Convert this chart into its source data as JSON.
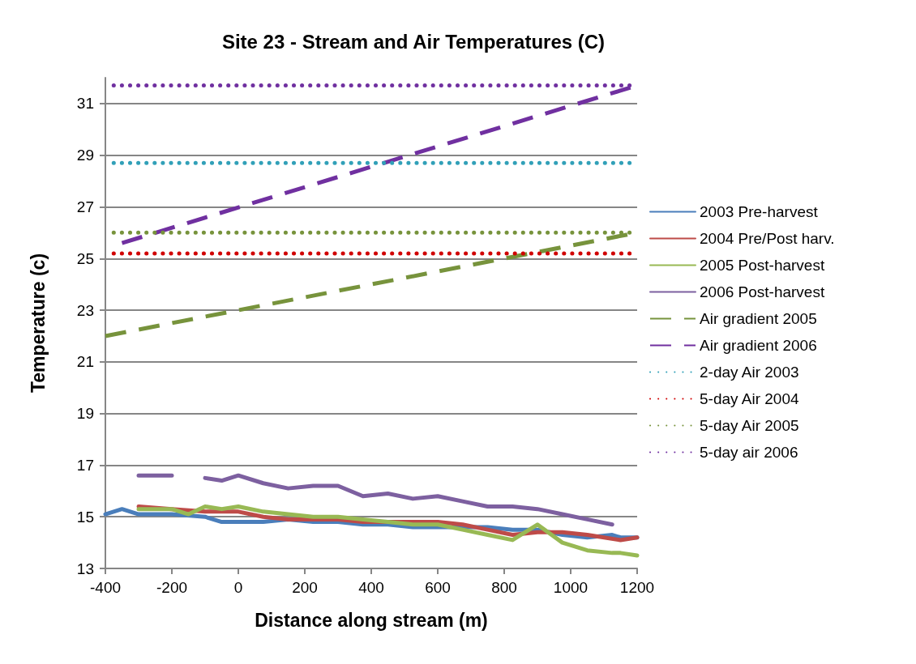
{
  "chart_data": {
    "type": "line",
    "title": "Site 23 - Stream and Air Temperatures (C)",
    "xlabel": "Distance along stream (m)",
    "ylabel": "Temperature (c)",
    "xlim": [
      -400,
      1200
    ],
    "xticks": [
      -400,
      -200,
      0,
      200,
      400,
      600,
      800,
      1000,
      1200
    ],
    "ylim": [
      13,
      32
    ],
    "yticks": [
      13,
      15,
      17,
      19,
      21,
      23,
      25,
      27,
      29,
      31
    ],
    "grid": "y",
    "legend": "right",
    "marker": "none",
    "series": [
      {
        "name": "2003 Pre-harvest",
        "color": "#4a7ebb",
        "line_style": "solid",
        "x": [
          -400,
          -350,
          -300,
          -200,
          -100,
          -50,
          0,
          75,
          150,
          225,
          300,
          375,
          450,
          525,
          600,
          675,
          750,
          825,
          900,
          975,
          1050,
          1125,
          1150,
          1200
        ],
        "values": [
          15.1,
          15.3,
          15.1,
          15.1,
          15.0,
          14.8,
          14.8,
          14.8,
          14.9,
          14.8,
          14.8,
          14.7,
          14.7,
          14.6,
          14.6,
          14.6,
          14.6,
          14.5,
          14.5,
          14.3,
          14.2,
          14.3,
          14.2,
          14.2
        ]
      },
      {
        "name": "2004 Pre/Post harv.",
        "color": "#be4b48",
        "line_style": "solid",
        "x": [
          -300,
          -200,
          -100,
          0,
          75,
          150,
          225,
          300,
          375,
          450,
          525,
          600,
          675,
          750,
          825,
          900,
          975,
          1050,
          1150,
          1200
        ],
        "values": [
          15.4,
          15.3,
          15.2,
          15.2,
          15.0,
          14.9,
          14.9,
          14.9,
          14.8,
          14.8,
          14.8,
          14.8,
          14.7,
          14.5,
          14.3,
          14.4,
          14.4,
          14.3,
          14.1,
          14.2
        ]
      },
      {
        "name": "2005 Post-harvest",
        "color": "#98b954",
        "line_style": "solid",
        "x": [
          -300,
          -200,
          -150,
          -100,
          -50,
          0,
          75,
          150,
          225,
          300,
          375,
          450,
          525,
          600,
          675,
          750,
          825,
          900,
          975,
          1050,
          1125,
          1150,
          1200
        ],
        "values": [
          15.3,
          15.3,
          15.1,
          15.4,
          15.3,
          15.4,
          15.2,
          15.1,
          15.0,
          15.0,
          14.9,
          14.8,
          14.7,
          14.7,
          14.5,
          14.3,
          14.1,
          14.7,
          14.0,
          13.7,
          13.6,
          13.6,
          13.5
        ]
      },
      {
        "name": "2006 Post-harvest",
        "color": "#7d60a0",
        "line_style": "solid",
        "x": [
          -300,
          -200,
          -150,
          -100,
          -50,
          0,
          75,
          150,
          225,
          300,
          375,
          450,
          525,
          600,
          675,
          750,
          825,
          900,
          975,
          1050,
          1125
        ],
        "values": [
          16.6,
          16.6,
          null,
          16.5,
          16.4,
          16.6,
          16.3,
          16.1,
          16.2,
          16.2,
          15.8,
          15.9,
          15.7,
          15.8,
          15.6,
          15.4,
          15.4,
          15.3,
          15.1,
          14.9,
          14.7
        ]
      },
      {
        "name": "Air gradient 2005",
        "color": "#77933c",
        "line_style": "dashed",
        "x": [
          -400,
          1200
        ],
        "values": [
          22.0,
          26.0
        ]
      },
      {
        "name": "Air gradient 2006",
        "color": "#7030a0",
        "line_style": "dashed",
        "x": [
          -350,
          1200
        ],
        "values": [
          25.6,
          31.7
        ]
      },
      {
        "name": "2-day Air 2003",
        "color": "#31a0b8",
        "line_style": "dotted",
        "x": [
          -375,
          1200
        ],
        "values": [
          28.7,
          28.7
        ]
      },
      {
        "name": "5-day Air 2004",
        "color": "#d00000",
        "line_style": "dotted",
        "x": [
          -375,
          1200
        ],
        "values": [
          25.2,
          25.2
        ]
      },
      {
        "name": "5-day Air 2005",
        "color": "#77933c",
        "line_style": "dotted",
        "x": [
          -375,
          1200
        ],
        "values": [
          26.0,
          26.0
        ]
      },
      {
        "name": "5-day air 2006",
        "color": "#7030a0",
        "line_style": "dotted",
        "x": [
          -375,
          1200
        ],
        "values": [
          31.7,
          31.7
        ]
      }
    ]
  }
}
